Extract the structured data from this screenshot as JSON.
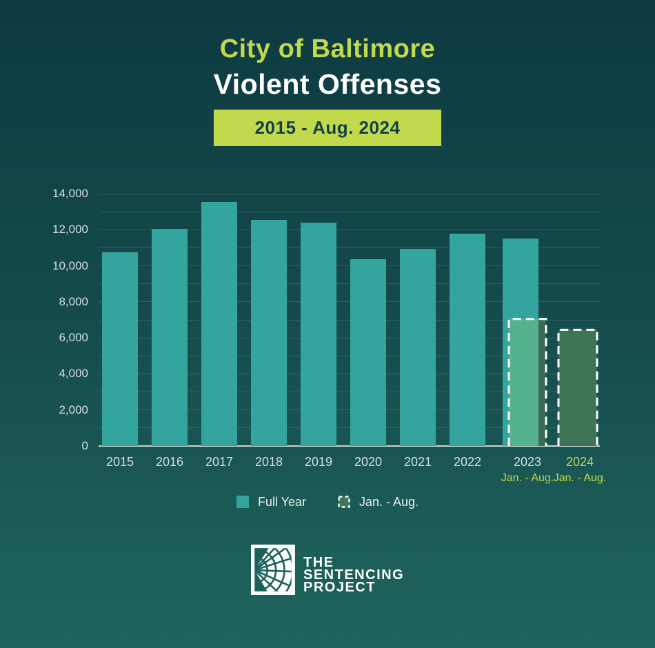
{
  "header": {
    "title_line1": "City of Baltimore",
    "title_line2": "Violent Offenses",
    "badge": "2015 - Aug. 2024"
  },
  "chart_data": {
    "type": "bar",
    "title": "City of Baltimore Violent Offenses",
    "subtitle": "2015 - Aug. 2024",
    "categories": [
      "2015",
      "2016",
      "2017",
      "2018",
      "2019",
      "2020",
      "2021",
      "2022",
      "2023",
      "2024"
    ],
    "series": [
      {
        "name": "Full Year",
        "color": "#34a49e",
        "values": [
          10750,
          12050,
          13550,
          12550,
          12400,
          10350,
          10950,
          11800,
          11500,
          null
        ]
      },
      {
        "name": "Jan. - Aug.",
        "color": "#3e7355",
        "values": [
          null,
          null,
          null,
          null,
          null,
          null,
          null,
          null,
          7050,
          6450
        ]
      }
    ],
    "x_sublabels": [
      null,
      null,
      null,
      null,
      null,
      null,
      null,
      null,
      "Jan. - Aug.",
      "Jan. - Aug."
    ],
    "xlabel": "",
    "ylabel": "",
    "ylim": [
      0,
      14000
    ],
    "ytick_step": 2000,
    "gridline_step": 1000,
    "grid": true,
    "legend": [
      "Full Year",
      "Jan. - Aug."
    ],
    "legend_position": "bottom"
  },
  "legend": {
    "full_year": "Full Year",
    "jan_aug": "Jan. - Aug."
  },
  "footer": {
    "logo_line1": "THE",
    "logo_line2": "SENTENCING",
    "logo_line3": "PROJECT"
  },
  "colors": {
    "background_top": "#0d3a41",
    "background_bottom": "#1f655d",
    "accent_lime": "#c3d94d",
    "badge_text": "#123f46",
    "bar_full_year": "#34a49e",
    "bar_2023_overlap": "#55b28e",
    "bar_2023_edge": "#3a6b52",
    "bar_2024": "#3e7355",
    "axis_text": "#d6dfde",
    "dash_color": "#ffffff"
  }
}
